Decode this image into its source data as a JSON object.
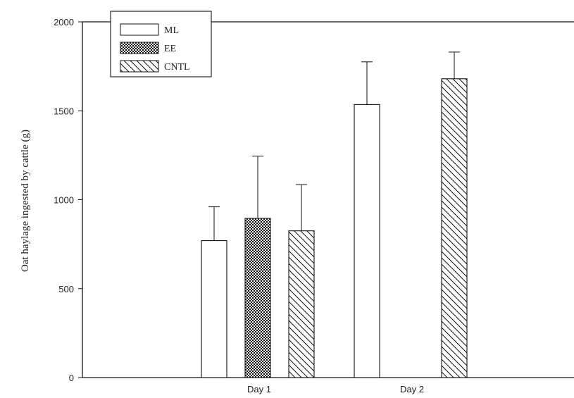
{
  "chart_data": {
    "type": "bar",
    "categories": [
      "Day 1",
      "Day 2"
    ],
    "ylabel": "Oat haylage ingested by cattle (g)",
    "xlabel": "",
    "ylim": [
      0,
      2000
    ],
    "yticks": [
      0,
      500,
      1000,
      1500,
      2000
    ],
    "error_bars": "upper",
    "legend_position": "top-left",
    "series": [
      {
        "name": "ML",
        "pattern": "open",
        "values": [
          770,
          1535
        ],
        "errors": [
          190,
          240
        ]
      },
      {
        "name": "EE",
        "pattern": "crosshatch",
        "values": [
          895,
          null
        ],
        "errors": [
          350,
          null
        ]
      },
      {
        "name": "CNTL",
        "pattern": "diagonal",
        "values": [
          825,
          1680
        ],
        "errors": [
          260,
          150
        ]
      }
    ]
  }
}
